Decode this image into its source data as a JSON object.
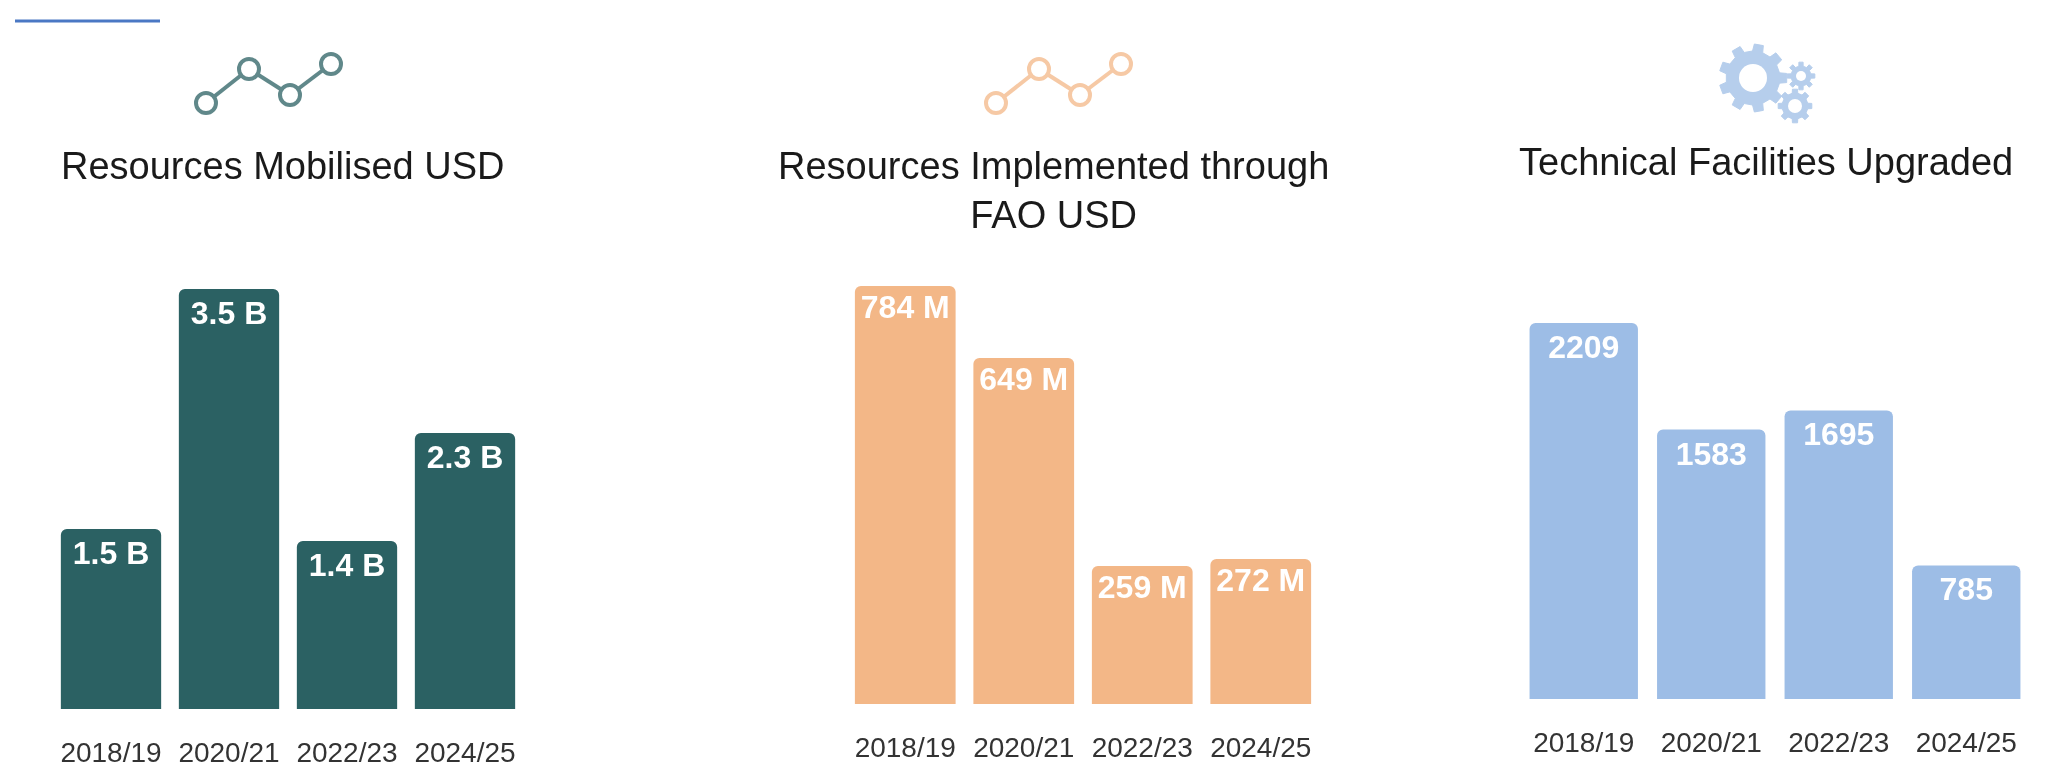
{
  "chart_data": [
    {
      "type": "bar",
      "title": "Resources Mobilised USD",
      "categories": [
        "2018/19",
        "2020/21",
        "2022/23",
        "2024/25"
      ],
      "values": [
        1.5,
        3.5,
        1.4,
        2.3
      ],
      "value_labels": [
        "1.5 B",
        "3.5 B",
        "1.4 B",
        "2.3 B"
      ],
      "color": "#2b6163",
      "tick_labels": "x"
    },
    {
      "type": "bar",
      "title": "Resources Implemented through FAO USD",
      "categories": [
        "2018/19",
        "2020/21",
        "2022/23",
        "2024/25"
      ],
      "values": [
        784,
        649,
        259,
        272
      ],
      "value_labels": [
        "784 M",
        "649 M",
        "259 M",
        "272 M"
      ],
      "color": "#f3b787",
      "tick_labels": "x"
    },
    {
      "type": "bar",
      "title": "Technical Facilities Upgraded",
      "categories": [
        "2018/19",
        "2020/21",
        "2022/23",
        "2024/25"
      ],
      "values": [
        2209,
        1583,
        1695,
        785
      ],
      "data_labels": true,
      "color": "#9dbde6",
      "tick_labels": "x"
    }
  ]
}
